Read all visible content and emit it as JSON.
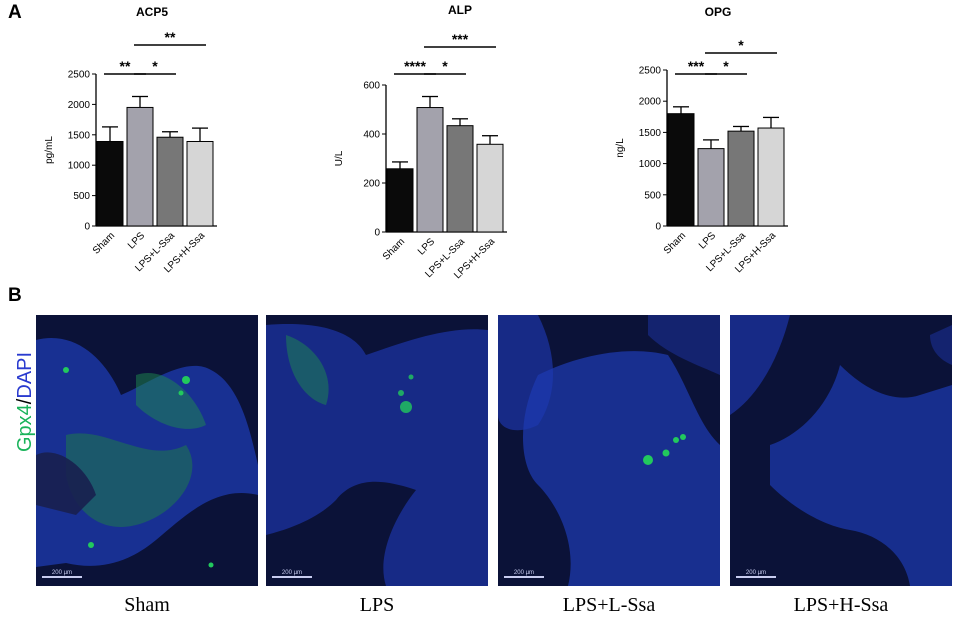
{
  "panels": {
    "a": "A",
    "b": "B"
  },
  "colors": {
    "sham": "#0a0a0a",
    "lps": "#a3a2ac",
    "lssa": "#777777",
    "hssa": "#d6d6d6",
    "gpx4": "#19b35a",
    "dapi": "#2a3bcf"
  },
  "chart_data": [
    {
      "type": "bar",
      "title": "ACP5",
      "ylabel": "pg/mL",
      "categories": [
        "Sham",
        "LPS",
        "LPS+L-Ssa",
        "LPS+H-Ssa"
      ],
      "values": [
        1390,
        1950,
        1460,
        1390
      ],
      "errors": [
        240,
        180,
        90,
        220
      ],
      "ylim": [
        0,
        2500
      ],
      "yticks": [
        "0",
        "500",
        "1000",
        "1500",
        "2000",
        "2500"
      ],
      "significance": [
        {
          "from": 0,
          "to": 1,
          "label": "**",
          "level": 0
        },
        {
          "from": 1,
          "to": 2,
          "label": "*",
          "level": 0
        },
        {
          "from": 1,
          "to": 3,
          "label": "**",
          "level": 1
        }
      ]
    },
    {
      "type": "bar",
      "title": "ALP",
      "ylabel": "U/L",
      "categories": [
        "Sham",
        "LPS",
        "LPS+L-Ssa",
        "LPS+H-Ssa"
      ],
      "values": [
        258,
        508,
        434,
        358
      ],
      "errors": [
        28,
        45,
        28,
        35
      ],
      "ylim": [
        0,
        600
      ],
      "yticks": [
        "0",
        "200",
        "400",
        "600"
      ],
      "significance": [
        {
          "from": 0,
          "to": 1,
          "label": "****",
          "level": 0
        },
        {
          "from": 1,
          "to": 2,
          "label": "*",
          "level": 0
        },
        {
          "from": 1,
          "to": 3,
          "label": "***",
          "level": 1
        }
      ]
    },
    {
      "type": "bar",
      "title": "OPG",
      "ylabel": "ng/L",
      "categories": [
        "Sham",
        "LPS",
        "LPS+L-Ssa",
        "LPS+H-Ssa"
      ],
      "values": [
        1800,
        1240,
        1520,
        1570
      ],
      "errors": [
        110,
        140,
        75,
        170
      ],
      "ylim": [
        0,
        2500
      ],
      "yticks": [
        "0",
        "500",
        "1000",
        "1500",
        "2000",
        "2500"
      ],
      "significance": [
        {
          "from": 0,
          "to": 1,
          "label": "***",
          "level": 0
        },
        {
          "from": 1,
          "to": 2,
          "label": "*",
          "level": 0
        },
        {
          "from": 1,
          "to": 3,
          "label": "*",
          "level": 1
        }
      ]
    }
  ],
  "panel_b": {
    "stain_gpx4": "Gpx4",
    "stain_sep": "/",
    "stain_dapi": "DAPI",
    "images": [
      {
        "caption": "Sham",
        "scale": "200 µm"
      },
      {
        "caption": "LPS",
        "scale": "200 µm"
      },
      {
        "caption": "LPS+L-Ssa",
        "scale": "200 µm"
      },
      {
        "caption": "LPS+H-Ssa",
        "scale": "200 µm"
      }
    ]
  }
}
